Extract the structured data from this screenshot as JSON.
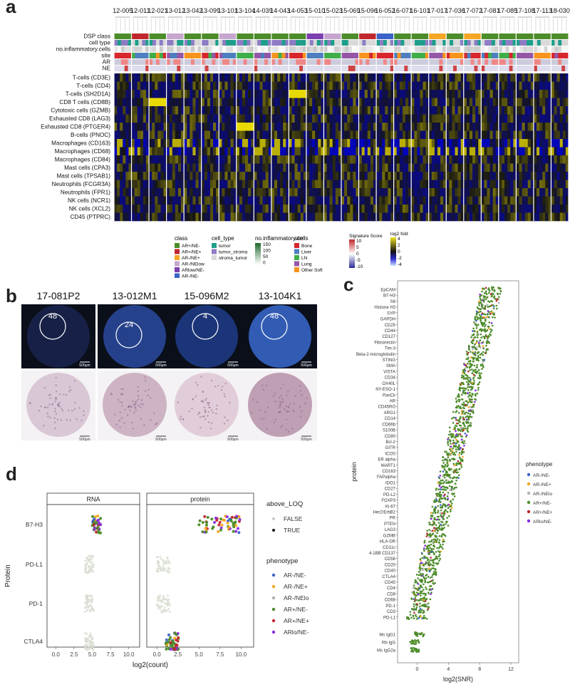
{
  "panels": {
    "a": {
      "label": "a",
      "patients": [
        "12-005",
        "12-011",
        "12-021",
        "13-012",
        "13-042",
        "13-099",
        "13-101",
        "13-104",
        "14-039",
        "14-043",
        "14-053",
        "15-010",
        "15-023",
        "15-069",
        "15-096",
        "16-052",
        "16-071",
        "16-101",
        "17-017",
        "17-036",
        "17-072",
        "17-081",
        "17-085",
        "17-108",
        "17-113",
        "18-030"
      ],
      "annotation_rows": [
        "DSP class",
        "cell type",
        "no.inflammatory.cells",
        "site",
        "AR",
        "NE"
      ],
      "signature_rows": [
        "T-cells (CD3E)",
        "T-cells (CD4)",
        "T-cells (SH2D1A)",
        "CD8 T cells (CD8B)",
        "Cytotoxic cells (GZMB)",
        "Exhausted CD8 (LAG3)",
        "Exhausted CD8 (PTGER4)",
        "B-cells (PNOC)",
        "Macrophages (CD163)",
        "Macrophages (CD68)",
        "Macrophages (CD84)",
        "Mast cells (CPA3)",
        "Mast cells (TPSAB1)",
        "Neutrophils (FCGR3A)",
        "Neutrophils (FPR1)",
        "NK cells (NCR1)",
        "NK cells (XCL2)",
        "CD45 (PTPRC)"
      ],
      "legend": {
        "class": {
          "title": "class",
          "items": [
            {
              "label": "AR+/NE-",
              "color": "#4d8c2a"
            },
            {
              "label": "AR+/NE+",
              "color": "#c0272d"
            },
            {
              "label": "AR-/NE+",
              "color": "#f5a623"
            },
            {
              "label": "AR-/NElow",
              "color": "#c6a6cf"
            },
            {
              "label": "ARlow/NE-",
              "color": "#7b3fb0"
            },
            {
              "label": "AR-/NE-",
              "color": "#3a62c9"
            }
          ]
        },
        "cell_type": {
          "title": "cell_type",
          "items": [
            {
              "label": "tumor",
              "color": "#1e9e8a"
            },
            {
              "label": "tumor_stroma",
              "color": "#8e7cc3"
            },
            {
              "label": "stroma_tumor",
              "color": "#d9d9d9"
            }
          ]
        },
        "inflam": {
          "title": "no.inflammatory.cells",
          "ticks": [
            "150",
            "100",
            "50",
            "0"
          ]
        },
        "site": {
          "title": "site",
          "items": [
            {
              "label": "Bone",
              "color": "#d7262c"
            },
            {
              "label": "Liver",
              "color": "#4d7fbf"
            },
            {
              "label": "LN",
              "color": "#3fae49"
            },
            {
              "label": "Lung",
              "color": "#9457a6"
            },
            {
              "label": "Other Soft",
              "color": "#f7941d"
            }
          ]
        },
        "signature": {
          "title": "Signature Score",
          "ticks": [
            "10",
            "5",
            "0",
            "-5",
            "-10"
          ]
        },
        "log2fold": {
          "title": "log2 fold",
          "ticks": [
            "4",
            "2",
            "0",
            "-2",
            "-4"
          ]
        }
      }
    },
    "b": {
      "label": "b",
      "cores": [
        {
          "id": "17-081P2",
          "count": "48"
        },
        {
          "id": "13-012M1",
          "count": "24"
        },
        {
          "id": "15-096M2",
          "count": "4"
        },
        {
          "id": "13-104K1",
          "count": "48"
        }
      ],
      "scalebar": "500μm"
    },
    "c": {
      "label": "c",
      "proteins": [
        "EpCAM",
        "B7-H3",
        "S6",
        "Histone H3",
        "SYP",
        "GAPDH",
        "CD25",
        "CD44",
        "CD127",
        "Fibronectin",
        "Tim-3",
        "Beta-2-microglobulin",
        "STING",
        "SMA",
        "VISTA",
        "CD34",
        "OX40L",
        "NY-ESO-1",
        "PanCk",
        "AR",
        "CD45RO",
        "ARG1",
        "CD14",
        "CD66b",
        "S100B",
        "CD80",
        "Bcl-2",
        "GITR",
        "ICOS",
        "ER alpha",
        "MART1",
        "CD163",
        "FAPalpha",
        "IDO1",
        "CD27",
        "PD-L2",
        "FOXP3",
        "Ki-67",
        "Her2/ErbB2",
        "PR",
        "PTEN",
        "LAG3",
        "GZMB",
        "HLA-DR",
        "CD11c",
        "4-1BB CD137",
        "CD56",
        "CD20",
        "CD40",
        "CTLA4",
        "CD45",
        "CD4",
        "CD8",
        "CD68",
        "PD-1",
        "CD3",
        "PD-L1"
      ],
      "controls": [
        "Ms IgG1",
        "Rb IgG",
        "Ms IgG2a"
      ],
      "ylabel": "protein",
      "xlabel": "log2(SNR)",
      "xticks": [
        "0",
        "4",
        "8",
        "12"
      ],
      "legend_title": "phenotype",
      "legend": [
        {
          "label": "AR-/NE-",
          "color": "#3a62c9"
        },
        {
          "label": "AR-/NE+",
          "color": "#f5a623"
        },
        {
          "label": "AR-/NElo",
          "color": "#b0b0b0"
        },
        {
          "label": "AR+/NE-",
          "color": "#4d8c2a"
        },
        {
          "label": "AR+/NE+",
          "color": "#c0272d"
        },
        {
          "label": "ARlo/NE-",
          "color": "#8a2be2"
        }
      ]
    },
    "d": {
      "label": "d",
      "facets": [
        "RNA",
        "protein"
      ],
      "proteins": [
        "B7-H3",
        "PD-L1",
        "PD-1",
        "CTLA4"
      ],
      "ylabel": "Protein",
      "xlabel": "log2(count)",
      "xticks": [
        "0.0",
        "2.5",
        "5.0",
        "7.5",
        "10.0"
      ],
      "loq_title": "above_LOQ",
      "loq": [
        {
          "label": "FALSE",
          "color": "#c8c8c8"
        },
        {
          "label": "TRUE",
          "color": "#111111"
        }
      ],
      "legend_title": "phenotype",
      "legend": [
        {
          "label": "AR-/NE-",
          "color": "#3a62c9"
        },
        {
          "label": "AR-/NE+",
          "color": "#f5a623"
        },
        {
          "label": "AR-/NElo",
          "color": "#b0b0b0"
        },
        {
          "label": "AR+/NE-",
          "color": "#4d8c2a"
        },
        {
          "label": "AR+/NE+",
          "color": "#c0272d"
        },
        {
          "label": "ARlo/NE-",
          "color": "#8a2be2"
        }
      ]
    }
  }
}
